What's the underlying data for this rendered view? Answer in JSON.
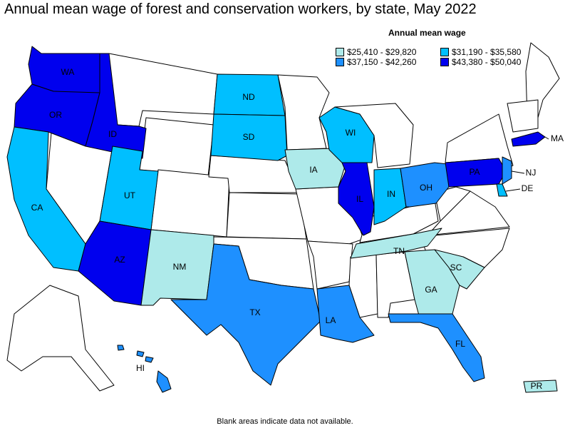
{
  "title": "Annual mean wage of forest and conservation workers, by state, May 2022",
  "legend": {
    "title": "Annual mean wage",
    "items": [
      {
        "label": "$25,410 - $29,820",
        "color": "#aeeaea"
      },
      {
        "label": "$31,190 - $35,580",
        "color": "#00bfff"
      },
      {
        "label": "$37,150 - $42,260",
        "color": "#1e90ff"
      },
      {
        "label": "$43,380 - $50,040",
        "color": "#0000ee"
      }
    ]
  },
  "footnote": "Blank areas indicate data not available.",
  "colors": {
    "blank": "#ffffff",
    "border": "#000000"
  },
  "states": [
    {
      "abbr": "WA",
      "bin": 3
    },
    {
      "abbr": "OR",
      "bin": 3
    },
    {
      "abbr": "ID",
      "bin": 3
    },
    {
      "abbr": "CA",
      "bin": 1
    },
    {
      "abbr": "UT",
      "bin": 1
    },
    {
      "abbr": "AZ",
      "bin": 3
    },
    {
      "abbr": "NM",
      "bin": 0
    },
    {
      "abbr": "ND",
      "bin": 1
    },
    {
      "abbr": "SD",
      "bin": 1
    },
    {
      "abbr": "TX",
      "bin": 2
    },
    {
      "abbr": "IA",
      "bin": 0
    },
    {
      "abbr": "LA",
      "bin": 2
    },
    {
      "abbr": "WI",
      "bin": 1
    },
    {
      "abbr": "IL",
      "bin": 3
    },
    {
      "abbr": "IN",
      "bin": 1
    },
    {
      "abbr": "TN",
      "bin": 0
    },
    {
      "abbr": "OH",
      "bin": 2
    },
    {
      "abbr": "GA",
      "bin": 0
    },
    {
      "abbr": "SC",
      "bin": 0
    },
    {
      "abbr": "FL",
      "bin": 2
    },
    {
      "abbr": "PA",
      "bin": 3
    },
    {
      "abbr": "NJ",
      "bin": 2
    },
    {
      "abbr": "DE",
      "bin": 1
    },
    {
      "abbr": "MA",
      "bin": 3
    },
    {
      "abbr": "HI",
      "bin": 2
    },
    {
      "abbr": "PR",
      "bin": 0
    }
  ]
}
